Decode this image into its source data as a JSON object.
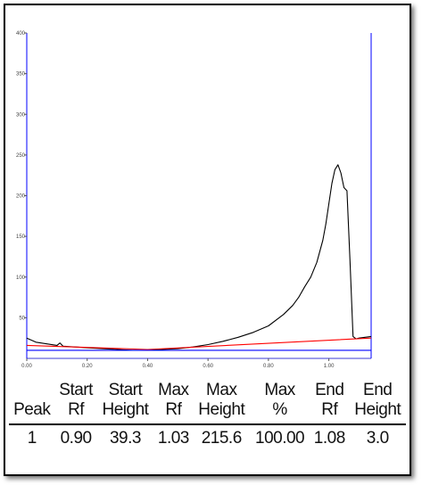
{
  "chart_data": {
    "type": "line",
    "xlim": [
      0,
      1.14
    ],
    "ylim": [
      0,
      400
    ],
    "x_ticks": [
      "0.00",
      "0.20",
      "0.40",
      "0.60",
      "0.80",
      "1.00"
    ],
    "x_tick_values": [
      0,
      0.2,
      0.4,
      0.6,
      0.8,
      1.0
    ],
    "y_ticks": [
      "50",
      "100",
      "150",
      "200",
      "250",
      "300",
      "350",
      "400"
    ],
    "y_tick_values": [
      50,
      100,
      150,
      200,
      250,
      300,
      350,
      400
    ],
    "series": [
      {
        "color": "#000000",
        "x": [
          0.0,
          0.03,
          0.1,
          0.11,
          0.12,
          0.2,
          0.3,
          0.35,
          0.4,
          0.45,
          0.5,
          0.55,
          0.6,
          0.65,
          0.7,
          0.75,
          0.8,
          0.85,
          0.88,
          0.9,
          0.92,
          0.94,
          0.96,
          0.98,
          0.99,
          1.0,
          1.01,
          1.02,
          1.03,
          1.04,
          1.05,
          1.06,
          1.07,
          1.08,
          1.09,
          1.1,
          1.14
        ],
        "y": [
          25,
          20,
          16,
          19,
          15,
          13,
          11,
          10,
          10,
          11,
          12,
          14,
          17,
          21,
          26,
          32,
          40,
          54,
          65,
          75,
          88,
          100,
          118,
          145,
          165,
          190,
          215,
          232,
          238,
          228,
          210,
          206,
          120,
          27,
          24,
          25,
          27
        ]
      },
      {
        "color": "#ff0000",
        "x": [
          0.0,
          0.4,
          1.14
        ],
        "y": [
          16,
          11,
          25
        ]
      },
      {
        "color": "#0000ff",
        "x": [
          0.0,
          1.14
        ],
        "y": [
          10,
          10
        ]
      }
    ],
    "verticals": [
      {
        "x": 0.0,
        "color": "#0000ff"
      },
      {
        "x": 1.14,
        "color": "#0000ff"
      }
    ]
  },
  "table": {
    "headers": [
      {
        "line1": "",
        "line2": "Peak"
      },
      {
        "line1": "Start",
        "line2": "Rf"
      },
      {
        "line1": "Start",
        "line2": "Height"
      },
      {
        "line1": "Max",
        "line2": "Rf"
      },
      {
        "line1": "Max",
        "line2": "Height"
      },
      {
        "line1": "Max",
        "line2": "%"
      },
      {
        "line1": "End",
        "line2": "Rf"
      },
      {
        "line1": "End",
        "line2": "Height"
      }
    ],
    "rows": [
      [
        "1",
        "0.90",
        "39.3",
        "1.03",
        "215.6",
        "100.00",
        "1.08",
        "3.0"
      ]
    ]
  }
}
